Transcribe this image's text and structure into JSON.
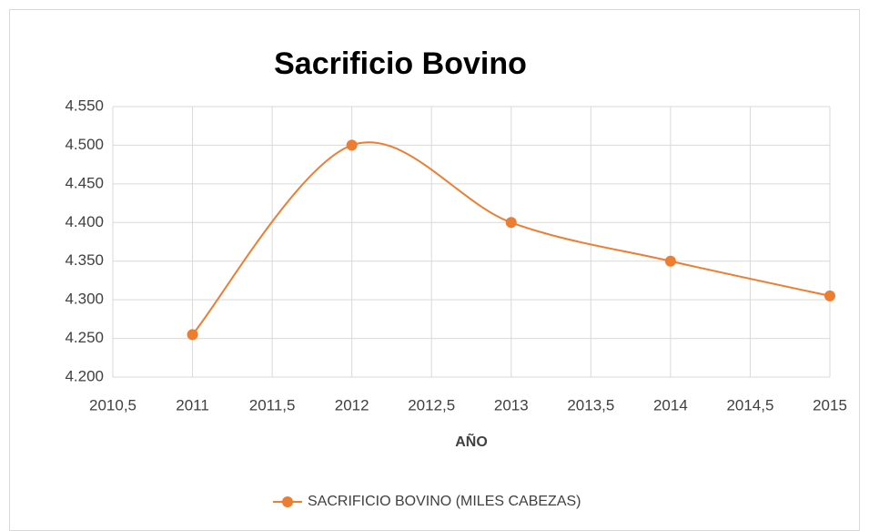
{
  "chart_data": {
    "type": "line",
    "title": "Sacrificio Bovino",
    "x_label": "AÑO",
    "x": [
      2011,
      2012,
      2013,
      2014,
      2015
    ],
    "series": [
      {
        "name": "SACRIFICIO BOVINO (MILES CABEZAS)",
        "color": "#ed7d31",
        "values": [
          4255,
          4500,
          4400,
          4350,
          4305
        ]
      }
    ],
    "xlim": [
      2010.5,
      2015
    ],
    "xticks": [
      {
        "value": 2010.5,
        "label": "2010,5"
      },
      2011,
      {
        "value": 2011.5,
        "label": "2011,5"
      },
      2012,
      {
        "value": 2012.5,
        "label": "2012,5"
      },
      2013,
      {
        "value": 2013.5,
        "label": "2013,5"
      },
      2014,
      {
        "value": 2014.5,
        "label": "2014,5"
      },
      2015
    ],
    "ylim": [
      4200,
      4550
    ],
    "yticks": [
      {
        "value": 4200,
        "label": "4.200"
      },
      {
        "value": 4250,
        "label": "4.250"
      },
      {
        "value": 4300,
        "label": "4.300"
      },
      {
        "value": 4350,
        "label": "4.350"
      },
      {
        "value": 4400,
        "label": "4.400"
      },
      {
        "value": 4450,
        "label": "4.450"
      },
      {
        "value": 4500,
        "label": "4.500"
      },
      {
        "value": 4550,
        "label": "4.550"
      }
    ],
    "grid": true,
    "smooth": true,
    "legend": "bottom"
  }
}
